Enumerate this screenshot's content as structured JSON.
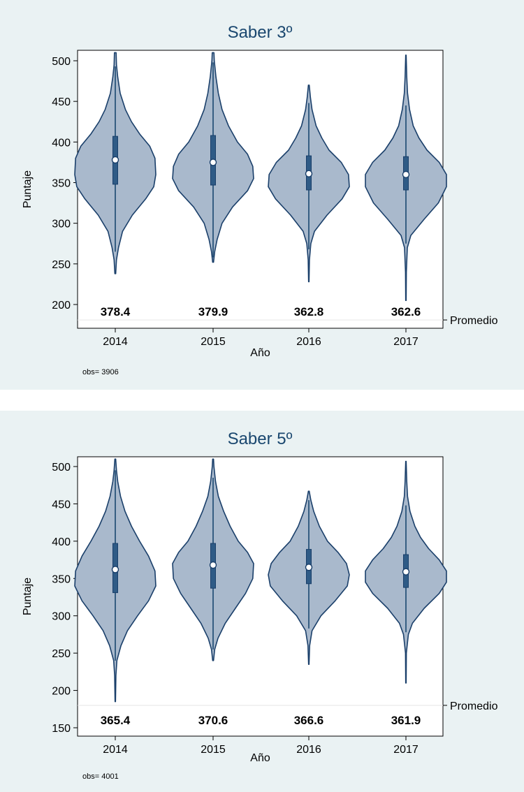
{
  "chart_data": [
    {
      "type": "violin",
      "title": "Saber 3º",
      "xlabel": "Año",
      "ylabel": "Puntaje",
      "categories": [
        "2014",
        "2015",
        "2016",
        "2017"
      ],
      "ylim": [
        170,
        510
      ],
      "yticks": [
        200,
        250,
        300,
        350,
        400,
        450,
        500
      ],
      "ytick_labels": [
        "200",
        "250",
        "300",
        "350",
        "400",
        "450",
        "500"
      ],
      "reference_line": {
        "value": 181,
        "label": "Promedio"
      },
      "mean_labels": [
        "378.4",
        "379.9",
        "362.8",
        "362.6"
      ],
      "note": "obs= 3906",
      "groups": [
        {
          "year": "2014",
          "median": 378,
          "q1": 348,
          "q3": 407,
          "wlo": 265,
          "whi": 493,
          "min": 238,
          "max": 510,
          "density": [
            [
              238,
              0.01
            ],
            [
              255,
              0.03
            ],
            [
              270,
              0.08
            ],
            [
              290,
              0.18
            ],
            [
              310,
              0.42
            ],
            [
              330,
              0.75
            ],
            [
              345,
              0.95
            ],
            [
              360,
              1.0
            ],
            [
              380,
              0.98
            ],
            [
              395,
              0.85
            ],
            [
              410,
              0.6
            ],
            [
              425,
              0.4
            ],
            [
              440,
              0.25
            ],
            [
              460,
              0.12
            ],
            [
              480,
              0.06
            ],
            [
              495,
              0.03
            ],
            [
              510,
              0.02
            ]
          ]
        },
        {
          "year": "2015",
          "median": 375,
          "q1": 347,
          "q3": 408,
          "wlo": 258,
          "whi": 498,
          "min": 252,
          "max": 510,
          "density": [
            [
              252,
              0.01
            ],
            [
              265,
              0.04
            ],
            [
              280,
              0.1
            ],
            [
              300,
              0.22
            ],
            [
              320,
              0.48
            ],
            [
              340,
              0.85
            ],
            [
              355,
              1.0
            ],
            [
              370,
              0.98
            ],
            [
              385,
              0.85
            ],
            [
              400,
              0.6
            ],
            [
              420,
              0.38
            ],
            [
              440,
              0.22
            ],
            [
              460,
              0.13
            ],
            [
              480,
              0.07
            ],
            [
              500,
              0.03
            ],
            [
              510,
              0.02
            ]
          ]
        },
        {
          "year": "2016",
          "median": 361,
          "q1": 341,
          "q3": 383,
          "wlo": 268,
          "whi": 448,
          "min": 228,
          "max": 470,
          "density": [
            [
              228,
              0.005
            ],
            [
              255,
              0.015
            ],
            [
              275,
              0.05
            ],
            [
              290,
              0.14
            ],
            [
              310,
              0.45
            ],
            [
              330,
              0.82
            ],
            [
              345,
              1.0
            ],
            [
              360,
              0.98
            ],
            [
              375,
              0.8
            ],
            [
              390,
              0.5
            ],
            [
              405,
              0.32
            ],
            [
              420,
              0.18
            ],
            [
              440,
              0.08
            ],
            [
              455,
              0.04
            ],
            [
              470,
              0.01
            ]
          ]
        },
        {
          "year": "2017",
          "median": 360,
          "q1": 341,
          "q3": 382,
          "wlo": 275,
          "whi": 445,
          "min": 205,
          "max": 507,
          "density": [
            [
              205,
              0.005
            ],
            [
              240,
              0.01
            ],
            [
              270,
              0.035
            ],
            [
              285,
              0.12
            ],
            [
              305,
              0.45
            ],
            [
              325,
              0.8
            ],
            [
              345,
              1.0
            ],
            [
              360,
              1.0
            ],
            [
              375,
              0.82
            ],
            [
              390,
              0.52
            ],
            [
              405,
              0.32
            ],
            [
              420,
              0.18
            ],
            [
              440,
              0.09
            ],
            [
              460,
              0.04
            ],
            [
              480,
              0.02
            ],
            [
              507,
              0.005
            ]
          ]
        }
      ]
    },
    {
      "type": "violin",
      "title": "Saber 5º",
      "xlabel": "Año",
      "ylabel": "Puntaje",
      "categories": [
        "2014",
        "2015",
        "2016",
        "2017"
      ],
      "ylim": [
        143,
        510
      ],
      "yticks": [
        150,
        200,
        250,
        300,
        350,
        400,
        450,
        500
      ],
      "ytick_labels": [
        "150",
        "200",
        "250",
        "300",
        "350",
        "400",
        "450",
        "500"
      ],
      "reference_line": {
        "value": 180,
        "label": "Promedio"
      },
      "mean_labels": [
        "365.4",
        "370.6",
        "366.6",
        "361.9"
      ],
      "note": "obs= 4001",
      "groups": [
        {
          "year": "2014",
          "median": 362,
          "q1": 331,
          "q3": 397,
          "wlo": 240,
          "whi": 495,
          "min": 185,
          "max": 510,
          "density": [
            [
              185,
              0.005
            ],
            [
              220,
              0.015
            ],
            [
              240,
              0.04
            ],
            [
              260,
              0.14
            ],
            [
              280,
              0.3
            ],
            [
              300,
              0.55
            ],
            [
              320,
              0.82
            ],
            [
              340,
              1.0
            ],
            [
              360,
              0.98
            ],
            [
              380,
              0.82
            ],
            [
              400,
              0.6
            ],
            [
              420,
              0.4
            ],
            [
              440,
              0.24
            ],
            [
              460,
              0.13
            ],
            [
              480,
              0.06
            ],
            [
              495,
              0.03
            ],
            [
              510,
              0.01
            ]
          ]
        },
        {
          "year": "2015",
          "median": 368,
          "q1": 337,
          "q3": 397,
          "wlo": 255,
          "whi": 485,
          "min": 240,
          "max": 510,
          "density": [
            [
              240,
              0.01
            ],
            [
              255,
              0.04
            ],
            [
              270,
              0.12
            ],
            [
              290,
              0.3
            ],
            [
              310,
              0.55
            ],
            [
              330,
              0.8
            ],
            [
              350,
              0.98
            ],
            [
              370,
              1.0
            ],
            [
              385,
              0.85
            ],
            [
              400,
              0.62
            ],
            [
              420,
              0.42
            ],
            [
              440,
              0.26
            ],
            [
              460,
              0.13
            ],
            [
              480,
              0.06
            ],
            [
              500,
              0.02
            ],
            [
              510,
              0.01
            ]
          ]
        },
        {
          "year": "2016",
          "median": 365,
          "q1": 343,
          "q3": 389,
          "wlo": 283,
          "whi": 455,
          "min": 235,
          "max": 467,
          "density": [
            [
              235,
              0.005
            ],
            [
              260,
              0.02
            ],
            [
              280,
              0.08
            ],
            [
              300,
              0.3
            ],
            [
              320,
              0.65
            ],
            [
              340,
              0.95
            ],
            [
              355,
              1.0
            ],
            [
              370,
              0.93
            ],
            [
              385,
              0.72
            ],
            [
              400,
              0.46
            ],
            [
              420,
              0.26
            ],
            [
              440,
              0.12
            ],
            [
              455,
              0.05
            ],
            [
              467,
              0.01
            ]
          ]
        },
        {
          "year": "2017",
          "median": 359,
          "q1": 338,
          "q3": 382,
          "wlo": 278,
          "whi": 448,
          "min": 210,
          "max": 507,
          "density": [
            [
              210,
              0.005
            ],
            [
              250,
              0.01
            ],
            [
              275,
              0.06
            ],
            [
              290,
              0.16
            ],
            [
              310,
              0.45
            ],
            [
              330,
              0.82
            ],
            [
              345,
              1.0
            ],
            [
              360,
              1.0
            ],
            [
              375,
              0.82
            ],
            [
              390,
              0.56
            ],
            [
              405,
              0.36
            ],
            [
              420,
              0.22
            ],
            [
              440,
              0.1
            ],
            [
              460,
              0.04
            ],
            [
              480,
              0.02
            ],
            [
              507,
              0.005
            ]
          ]
        }
      ]
    }
  ]
}
